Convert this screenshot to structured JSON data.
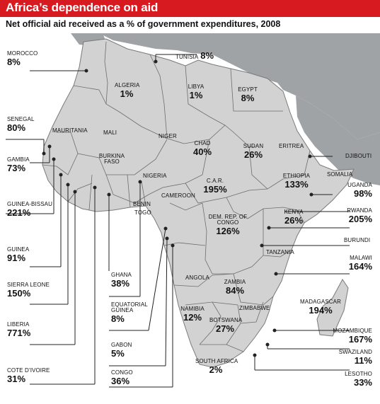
{
  "header": {
    "title": "Africa’s dependence on aid",
    "subtitle": "Net official aid received as a % of government expenditures, 2008"
  },
  "colors": {
    "title_bar": "#d71920",
    "land_africa": "#d2d2d2",
    "land_other": "#9fa3a5",
    "sea": "#ffffff",
    "border": "#6d6d6d",
    "leader_line": "#222222"
  },
  "countries": [
    {
      "key": "morocco",
      "name": "MOROCCO",
      "value": "8%"
    },
    {
      "key": "tunisia",
      "name": "TUNISIA",
      "value": "8%"
    },
    {
      "key": "algeria",
      "name": "ALGERIA",
      "value": "1%"
    },
    {
      "key": "libya",
      "name": "LIBYA",
      "value": "1%"
    },
    {
      "key": "egypt",
      "name": "EGYPT",
      "value": "8%"
    },
    {
      "key": "senegal",
      "name": "SENEGAL",
      "value": "80%"
    },
    {
      "key": "gambia",
      "name": "GAMBIA",
      "value": "73%"
    },
    {
      "key": "guinea_bissau",
      "name": "GUINEA-BISSAU",
      "value": "221%"
    },
    {
      "key": "guinea",
      "name": "GUINEA",
      "value": "91%"
    },
    {
      "key": "sierra_leone",
      "name": "SIERRA LEONE",
      "value": "150%"
    },
    {
      "key": "liberia",
      "name": "LIBERIA",
      "value": "771%"
    },
    {
      "key": "cote_divoire",
      "name": "COTE D’IVOIRE",
      "value": "31%"
    },
    {
      "key": "chad",
      "name": "CHAD",
      "value": "40%"
    },
    {
      "key": "sudan",
      "name": "SUDAN",
      "value": "26%"
    },
    {
      "key": "ethiopia",
      "name": "ETHIOPIA",
      "value": "133%"
    },
    {
      "key": "car",
      "name": "C.A.R.",
      "value": "195%"
    },
    {
      "key": "uganda",
      "name": "UGANDA",
      "value": "98%"
    },
    {
      "key": "kenya",
      "name": "KENYA",
      "value": "26%"
    },
    {
      "key": "rwanda",
      "name": "RWANDA",
      "value": "205%"
    },
    {
      "key": "drc",
      "name": "DEM. REP. OF CONGO",
      "value": "126%"
    },
    {
      "key": "malawi",
      "name": "MALAWI",
      "value": "164%"
    },
    {
      "key": "ghana",
      "name": "GHANA",
      "value": "38%"
    },
    {
      "key": "eq_guinea",
      "name": "EQUATORIAL GUINEA",
      "value": "8%"
    },
    {
      "key": "zambia",
      "name": "ZAMBIA",
      "value": "84%"
    },
    {
      "key": "madagascar",
      "name": "MADAGASCAR",
      "value": "194%"
    },
    {
      "key": "namibia",
      "name": "NAMIBIA",
      "value": "12%"
    },
    {
      "key": "botswana",
      "name": "BOTSWANA",
      "value": "27%"
    },
    {
      "key": "mozambique",
      "name": "MOZAMBIQUE",
      "value": "167%"
    },
    {
      "key": "gabon",
      "name": "GABON",
      "value": "5%"
    },
    {
      "key": "swaziland",
      "name": "SWAZILAND",
      "value": "11%"
    },
    {
      "key": "congo",
      "name": "CONGO",
      "value": "36%"
    },
    {
      "key": "south_africa",
      "name": "SOUTH AFRICA",
      "value": "2%"
    },
    {
      "key": "lesotho",
      "name": "LESOTHO",
      "value": "33%"
    }
  ],
  "unlabeled_countries": [
    "MAURITANIA",
    "MALI",
    "NIGER",
    "NIGERIA",
    "BURKINA FASO",
    "CAMEROON",
    "BENIN",
    "TOGO",
    "ERITREA",
    "DJIBOUTI",
    "SOMALIA",
    "BURUNDI",
    "TANZANIA",
    "ANGOLA",
    "ZIMBABWE"
  ]
}
